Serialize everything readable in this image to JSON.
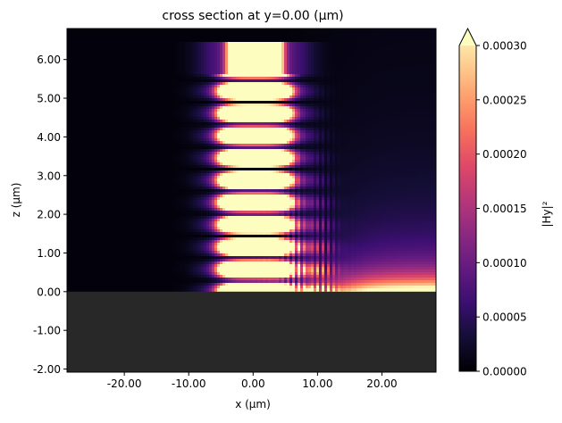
{
  "chart_data": {
    "type": "heatmap",
    "title": "cross section at y=0.00 (µm)",
    "xlabel": "x (µm)",
    "ylabel": "z (µm)",
    "xlim": [
      -28.9,
      28.4
    ],
    "ylim": [
      -2.08,
      6.8
    ],
    "xticks": [
      -20,
      -10,
      0,
      10,
      20
    ],
    "xtick_labels": [
      "-20.00",
      "-10.00",
      "0.00",
      "10.00",
      "20.00"
    ],
    "yticks": [
      -2,
      -1,
      0,
      1,
      2,
      3,
      4,
      5,
      6
    ],
    "ytick_labels": [
      "-2.00",
      "-1.00",
      "0.00",
      "1.00",
      "2.00",
      "3.00",
      "4.00",
      "5.00",
      "6.00"
    ],
    "colormap": "magma",
    "colorbar": {
      "label": "|Hy|²",
      "clim": [
        0,
        0.0003
      ],
      "extend": "max",
      "ticks": [
        0,
        5e-05,
        0.0001,
        0.00015,
        0.0002,
        0.00025,
        0.0003
      ],
      "tick_labels": [
        "0.00000",
        "0.00005",
        "0.00010",
        "0.00015",
        "0.00020",
        "0.00025",
        "0.00030"
      ]
    },
    "field": {
      "beam_x_range": [
        -10,
        10
      ],
      "beam_top_z": 6.45,
      "standing_wave_node_z": [
        0.29,
        0.83,
        1.39,
        1.99,
        2.57,
        3.13,
        3.72,
        4.29,
        4.84,
        5.47
      ],
      "substrate_z_range": [
        -2.08,
        0
      ],
      "substrate_color": "#282828"
    }
  }
}
